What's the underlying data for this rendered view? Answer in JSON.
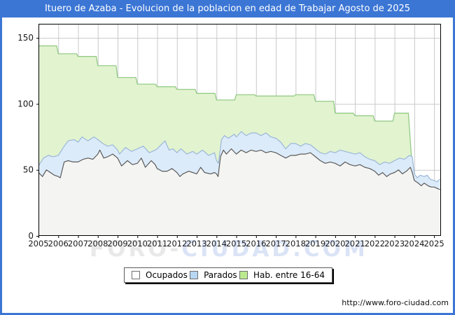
{
  "window": {
    "title": "Ituero de Azaba - Evolucion de la poblacion en edad de Trabajar Agosto de 2025"
  },
  "watermark": {
    "part1": "FORO-",
    "part2": "CIUDAD.COM"
  },
  "footer": {
    "url": "http://www.foro-ciudad.com"
  },
  "theme": {
    "titlebar_bg": "#3b76d5",
    "frame_border": "#3b76d5",
    "plot_border": "#000000",
    "grid_color": "#c9c9c9",
    "tick_text": "#1a1a1a"
  },
  "legend": {
    "items": [
      {
        "label": "Ocupados",
        "swatch": "#ffffff"
      },
      {
        "label": "Parados",
        "swatch": "#b7d7f2"
      },
      {
        "label": "Hab. entre 16-64",
        "swatch": "#bbe98f"
      }
    ]
  },
  "chart_data": {
    "type": "area",
    "title": "Ituero de Azaba - Evolucion de la poblacion en edad de Trabajar Agosto de 2025",
    "xlabel": "",
    "ylabel": "",
    "xlim": [
      2005,
      2025.35
    ],
    "ylim": [
      0,
      160.7
    ],
    "grid": true,
    "legend_position": "bottom",
    "x_ticks": [
      2005,
      2006,
      2007,
      2008,
      2009,
      2010,
      2011,
      2012,
      2013,
      2014,
      2015,
      2016,
      2017,
      2018,
      2019,
      2020,
      2021,
      2022,
      2023,
      2024,
      2025
    ],
    "y_ticks": [
      0,
      50,
      100,
      150
    ],
    "series": [
      {
        "name": "Hab. entre 16-64",
        "fill": "#e2f3d0",
        "stroke": "#8cc87e",
        "annual_values_note": "steps per year, value drops sharply at end of 2023",
        "points": [
          [
            2005,
            144
          ],
          [
            2005.92,
            144
          ],
          [
            2006,
            138
          ],
          [
            2006.92,
            138
          ],
          [
            2007,
            136
          ],
          [
            2007.92,
            136
          ],
          [
            2008,
            129
          ],
          [
            2008.92,
            129
          ],
          [
            2009,
            120
          ],
          [
            2009.92,
            120
          ],
          [
            2010,
            115
          ],
          [
            2010.92,
            115
          ],
          [
            2011,
            113
          ],
          [
            2011.92,
            113
          ],
          [
            2012,
            111
          ],
          [
            2012.92,
            111
          ],
          [
            2013,
            108
          ],
          [
            2013.92,
            108
          ],
          [
            2014,
            103
          ],
          [
            2014.92,
            103
          ],
          [
            2015,
            107
          ],
          [
            2015.92,
            107
          ],
          [
            2016,
            106
          ],
          [
            2016.92,
            106
          ],
          [
            2017,
            106
          ],
          [
            2017.92,
            106
          ],
          [
            2018,
            107
          ],
          [
            2018.92,
            107
          ],
          [
            2019,
            102
          ],
          [
            2019.92,
            102
          ],
          [
            2020,
            93
          ],
          [
            2020.92,
            93
          ],
          [
            2021,
            91
          ],
          [
            2021.92,
            91
          ],
          [
            2022,
            87
          ],
          [
            2022.92,
            87
          ],
          [
            2023,
            93
          ],
          [
            2023.7,
            93
          ],
          [
            2023.95,
            40
          ],
          [
            2025.3,
            40
          ]
        ]
      },
      {
        "name": "Parados",
        "fill": "#dcebf9",
        "stroke": "#9ab8d8",
        "points": [
          [
            2005,
            53
          ],
          [
            2005.25,
            59
          ],
          [
            2005.5,
            61
          ],
          [
            2005.75,
            60
          ],
          [
            2006,
            61
          ],
          [
            2006.3,
            68
          ],
          [
            2006.5,
            72
          ],
          [
            2006.8,
            73
          ],
          [
            2007,
            71
          ],
          [
            2007.2,
            75
          ],
          [
            2007.5,
            72
          ],
          [
            2007.8,
            75
          ],
          [
            2008,
            73
          ],
          [
            2008.25,
            70
          ],
          [
            2008.5,
            68
          ],
          [
            2008.75,
            69
          ],
          [
            2009,
            65
          ],
          [
            2009.1,
            62
          ],
          [
            2009.4,
            67
          ],
          [
            2009.7,
            64
          ],
          [
            2010,
            66
          ],
          [
            2010.3,
            68
          ],
          [
            2010.6,
            63
          ],
          [
            2010.9,
            65
          ],
          [
            2011,
            66
          ],
          [
            2011.4,
            72
          ],
          [
            2011.6,
            65
          ],
          [
            2011.8,
            66
          ],
          [
            2012,
            63
          ],
          [
            2012.2,
            66
          ],
          [
            2012.5,
            62
          ],
          [
            2012.8,
            64
          ],
          [
            2013,
            62
          ],
          [
            2013.3,
            65
          ],
          [
            2013.6,
            61
          ],
          [
            2013.9,
            63
          ],
          [
            2014,
            57
          ],
          [
            2014.1,
            55
          ],
          [
            2014.25,
            73
          ],
          [
            2014.4,
            76
          ],
          [
            2014.6,
            74
          ],
          [
            2014.9,
            77
          ],
          [
            2015,
            75
          ],
          [
            2015.25,
            79
          ],
          [
            2015.5,
            76
          ],
          [
            2015.75,
            78
          ],
          [
            2016,
            78
          ],
          [
            2016.25,
            76
          ],
          [
            2016.5,
            78
          ],
          [
            2016.75,
            75
          ],
          [
            2017,
            74
          ],
          [
            2017.25,
            71
          ],
          [
            2017.5,
            66
          ],
          [
            2017.75,
            70
          ],
          [
            2018,
            70
          ],
          [
            2018.25,
            68
          ],
          [
            2018.5,
            70
          ],
          [
            2018.75,
            69
          ],
          [
            2019,
            66
          ],
          [
            2019.25,
            63
          ],
          [
            2019.5,
            62
          ],
          [
            2019.75,
            64
          ],
          [
            2020,
            63
          ],
          [
            2020.25,
            65
          ],
          [
            2020.5,
            64
          ],
          [
            2020.75,
            63
          ],
          [
            2021,
            62
          ],
          [
            2021.25,
            63
          ],
          [
            2021.5,
            60
          ],
          [
            2021.75,
            58
          ],
          [
            2022,
            57
          ],
          [
            2022.25,
            54
          ],
          [
            2022.5,
            56
          ],
          [
            2022.75,
            55
          ],
          [
            2023,
            57
          ],
          [
            2023.25,
            59
          ],
          [
            2023.5,
            58
          ],
          [
            2023.75,
            61
          ],
          [
            2023.9,
            60
          ],
          [
            2024,
            47
          ],
          [
            2024.15,
            44
          ],
          [
            2024.3,
            46
          ],
          [
            2024.5,
            45
          ],
          [
            2024.65,
            46
          ],
          [
            2024.8,
            43
          ],
          [
            2025,
            42
          ],
          [
            2025.15,
            41
          ],
          [
            2025.3,
            43
          ]
        ]
      },
      {
        "name": "Ocupados",
        "fill": "#f4f4f2",
        "stroke": "#5a5a5a",
        "points": [
          [
            2005,
            48
          ],
          [
            2005.2,
            45
          ],
          [
            2005.4,
            50
          ],
          [
            2005.6,
            48
          ],
          [
            2005.8,
            46
          ],
          [
            2006,
            45
          ],
          [
            2006.1,
            44
          ],
          [
            2006.3,
            56
          ],
          [
            2006.5,
            57
          ],
          [
            2006.75,
            56
          ],
          [
            2007,
            56
          ],
          [
            2007.25,
            58
          ],
          [
            2007.5,
            59
          ],
          [
            2007.75,
            58
          ],
          [
            2008,
            62
          ],
          [
            2008.1,
            65
          ],
          [
            2008.3,
            59
          ],
          [
            2008.5,
            60
          ],
          [
            2008.75,
            62
          ],
          [
            2009,
            59
          ],
          [
            2009.2,
            53
          ],
          [
            2009.5,
            57
          ],
          [
            2009.75,
            54
          ],
          [
            2010,
            55
          ],
          [
            2010.2,
            59
          ],
          [
            2010.4,
            52
          ],
          [
            2010.7,
            57
          ],
          [
            2010.9,
            54
          ],
          [
            2011,
            51
          ],
          [
            2011.25,
            49
          ],
          [
            2011.5,
            49
          ],
          [
            2011.75,
            51
          ],
          [
            2012,
            48
          ],
          [
            2012.15,
            45
          ],
          [
            2012.3,
            47
          ],
          [
            2012.6,
            49
          ],
          [
            2012.8,
            48
          ],
          [
            2013,
            47
          ],
          [
            2013.2,
            52
          ],
          [
            2013.4,
            48
          ],
          [
            2013.7,
            47
          ],
          [
            2013.9,
            48
          ],
          [
            2014,
            47
          ],
          [
            2014.08,
            45
          ],
          [
            2014.2,
            60
          ],
          [
            2014.35,
            65
          ],
          [
            2014.5,
            62
          ],
          [
            2014.75,
            66
          ],
          [
            2015,
            62
          ],
          [
            2015.25,
            65
          ],
          [
            2015.5,
            63
          ],
          [
            2015.75,
            65
          ],
          [
            2016,
            64
          ],
          [
            2016.25,
            65
          ],
          [
            2016.5,
            63
          ],
          [
            2016.75,
            64
          ],
          [
            2017,
            63
          ],
          [
            2017.25,
            61
          ],
          [
            2017.5,
            59
          ],
          [
            2017.75,
            61
          ],
          [
            2018,
            61
          ],
          [
            2018.25,
            62
          ],
          [
            2018.5,
            62
          ],
          [
            2018.75,
            63
          ],
          [
            2019,
            60
          ],
          [
            2019.25,
            57
          ],
          [
            2019.5,
            55
          ],
          [
            2019.75,
            56
          ],
          [
            2020,
            55
          ],
          [
            2020.25,
            53
          ],
          [
            2020.5,
            56
          ],
          [
            2020.75,
            54
          ],
          [
            2021,
            53
          ],
          [
            2021.25,
            54
          ],
          [
            2021.5,
            52
          ],
          [
            2021.75,
            51
          ],
          [
            2022,
            49
          ],
          [
            2022.2,
            46
          ],
          [
            2022.4,
            48
          ],
          [
            2022.6,
            45
          ],
          [
            2022.8,
            47
          ],
          [
            2023,
            48
          ],
          [
            2023.2,
            50
          ],
          [
            2023.4,
            47
          ],
          [
            2023.6,
            49
          ],
          [
            2023.8,
            52
          ],
          [
            2023.9,
            48
          ],
          [
            2024,
            42
          ],
          [
            2024.2,
            40
          ],
          [
            2024.35,
            38
          ],
          [
            2024.5,
            40
          ],
          [
            2024.7,
            38
          ],
          [
            2024.85,
            37
          ],
          [
            2025,
            37
          ],
          [
            2025.15,
            36
          ],
          [
            2025.3,
            35
          ]
        ]
      }
    ]
  }
}
